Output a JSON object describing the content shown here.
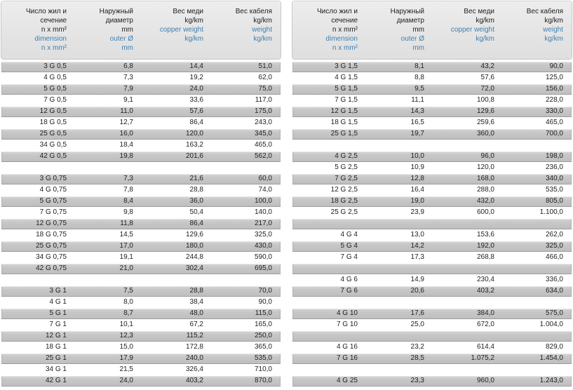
{
  "colors": {
    "row_gray": "#c6c6c6",
    "header_background": "#e6e6e6",
    "blue_text": "#3f7fb0",
    "black_text": "#1e1e1e",
    "page_background": "#ffffff"
  },
  "header": {
    "columns": [
      {
        "black": [
          "Число жил и",
          "сечение",
          "n x mm²"
        ],
        "blue": [
          "dimension",
          "n x mm²"
        ]
      },
      {
        "black": [
          "Наружный",
          "диаметр",
          "mm"
        ],
        "blue": [
          "outer Ø",
          "mm"
        ]
      },
      {
        "black": [
          "Вес меди",
          "kg/km"
        ],
        "blue": [
          "copper weight",
          "kg/km"
        ]
      },
      {
        "black": [
          "Вес кабеля",
          "kg/km"
        ],
        "blue": [
          "weight",
          "kg/km"
        ]
      }
    ]
  },
  "tables": [
    {
      "name": "left",
      "rows": [
        [
          "3 G 0,5",
          "6,8",
          "14,4",
          "51,0"
        ],
        [
          "4 G 0,5",
          "7,3",
          "19,2",
          "62,0"
        ],
        [
          "5 G 0,5",
          "7,9",
          "24,0",
          "75,0"
        ],
        [
          "7 G 0,5",
          "9,1",
          "33,6",
          "117,0"
        ],
        [
          "12 G 0,5",
          "11,0",
          "57,6",
          "175,0"
        ],
        [
          "18 G 0,5",
          "12,7",
          "86,4",
          "243,0"
        ],
        [
          "25 G 0,5",
          "16,0",
          "120,0",
          "345,0"
        ],
        [
          "34 G 0,5",
          "18,4",
          "163,2",
          "465,0"
        ],
        [
          "42 G 0,5",
          "19,8",
          "201,6",
          "562,0"
        ],
        [],
        [
          "3 G 0,75",
          "7,3",
          "21,6",
          "60,0"
        ],
        [
          "4 G 0,75",
          "7,8",
          "28,8",
          "74,0"
        ],
        [
          "5 G 0,75",
          "8,4",
          "36,0",
          "100,0"
        ],
        [
          "7 G 0,75",
          "9,8",
          "50,4",
          "140,0"
        ],
        [
          "12 G 0,75",
          "11,8",
          "86,4",
          "217,0"
        ],
        [
          "18 G 0,75",
          "14,5",
          "129,6",
          "325,0"
        ],
        [
          "25 G 0,75",
          "17,0",
          "180,0",
          "430,0"
        ],
        [
          "34 G 0,75",
          "19,1",
          "244,8",
          "590,0"
        ],
        [
          "42 G 0,75",
          "21,0",
          "302,4",
          "695,0"
        ],
        [],
        [
          "3 G 1",
          "7,5",
          "28,8",
          "70,0"
        ],
        [
          "4 G 1",
          "8,0",
          "38,4",
          "90,0"
        ],
        [
          "5 G 1",
          "8,7",
          "48,0",
          "115,0"
        ],
        [
          "7 G 1",
          "10,1",
          "67,2",
          "165,0"
        ],
        [
          "12 G 1",
          "12,3",
          "115,2",
          "250,0"
        ],
        [
          "18 G 1",
          "15,0",
          "172,8",
          "365,0"
        ],
        [
          "25 G 1",
          "17,9",
          "240,0",
          "535,0"
        ],
        [
          "34 G 1",
          "21,5",
          "326,4",
          "710,0"
        ],
        [
          "42 G 1",
          "24,0",
          "403,2",
          "870,0"
        ]
      ]
    },
    {
      "name": "right",
      "rows": [
        [
          "3 G 1,5",
          "8,1",
          "43,2",
          "90,0"
        ],
        [
          "4 G 1,5",
          "8,8",
          "57,6",
          "125,0"
        ],
        [
          "5 G 1,5",
          "9,5",
          "72,0",
          "156,0"
        ],
        [
          "7 G 1,5",
          "11,1",
          "100,8",
          "228,0"
        ],
        [
          "12 G 1,5",
          "14,3",
          "129,6",
          "330,0"
        ],
        [
          "18 G 1,5",
          "16,5",
          "259,6",
          "465,0"
        ],
        [
          "25 G 1,5",
          "19,7",
          "360,0",
          "700,0"
        ],
        [],
        [
          "4 G 2,5",
          "10,0",
          "96,0",
          "198,0"
        ],
        [
          "5 G 2,5",
          "10,9",
          "120,0",
          "236,0"
        ],
        [
          "7 G 2,5",
          "12,8",
          "168,0",
          "340,0"
        ],
        [
          "12 G 2,5",
          "16,4",
          "288,0",
          "535,0"
        ],
        [
          "18 G 2,5",
          "19,0",
          "432,0",
          "805,0"
        ],
        [
          "25 G 2,5",
          "23,9",
          "600,0",
          "1.100,0"
        ],
        [],
        [
          "4 G 4",
          "13,0",
          "153,6",
          "262,0"
        ],
        [
          "5 G 4",
          "14,2",
          "192,0",
          "325,0"
        ],
        [
          "7 G 4",
          "17,3",
          "268,8",
          "466,0"
        ],
        [],
        [
          "4 G 6",
          "14,9",
          "230,4",
          "336,0"
        ],
        [
          "7 G 6",
          "20,6",
          "403,2",
          "634,0"
        ],
        [],
        [
          "4 G 10",
          "17,6",
          "384,0",
          "575,0"
        ],
        [
          "7 G 10",
          "25,0",
          "672,0",
          "1.004,0"
        ],
        [],
        [
          "4 G 16",
          "23,2",
          "614,4",
          "829,0"
        ],
        [
          "7 G 16",
          "28,5",
          "1.075,2",
          "1.454,0"
        ],
        [],
        [
          "4 G 25",
          "23,3",
          "960,0",
          "1.243,0"
        ]
      ]
    }
  ]
}
